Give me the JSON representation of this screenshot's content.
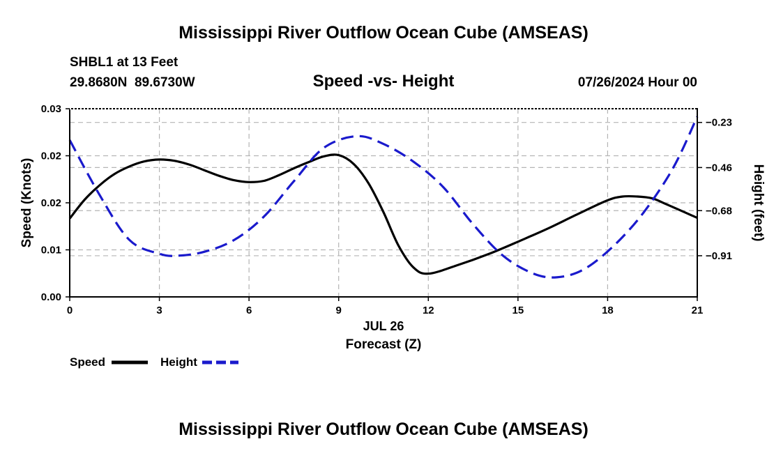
{
  "page": {
    "title": "Mississippi River Outflow Ocean Cube (AMSEAS)",
    "station": "SHBL1 at 13 Feet",
    "coords": "29.8680N  89.6730W",
    "plot_title": "Speed -vs- Height",
    "datetime": "07/26/2024 Hour 00",
    "footer_title": "Mississippi River Outflow Ocean Cube (AMSEAS)"
  },
  "colors": {
    "speed": "#000000",
    "height": "#1a1acc",
    "grid": "#b4b4b4"
  },
  "chart_data": {
    "type": "line",
    "title": "Speed -vs- Height",
    "xlabel": "Forecast (Z)",
    "xsublabel": "JUL 26",
    "ylabel": "Speed (Knots)",
    "y2label": "Height (feet)",
    "xlim": [
      0,
      21
    ],
    "ylim": [
      0,
      0.03
    ],
    "y2lim": [
      -1.12,
      -0.16
    ],
    "xticks": [
      0,
      3,
      6,
      9,
      12,
      15,
      18,
      21
    ],
    "xtick_labels": [
      "0",
      "3",
      "6",
      "9",
      "12",
      "15",
      "18",
      "21"
    ],
    "yticks": [
      0,
      0.0075,
      0.015,
      0.0225,
      0.03
    ],
    "ytick_labels": [
      "0.00",
      "0.01",
      "0.02",
      "0.02",
      "0.03"
    ],
    "y2ticks": [
      -0.91,
      -0.68,
      -0.46,
      -0.23
    ],
    "y2tick_labels": [
      "−0.91",
      "−0.68",
      "−0.46",
      "−0.23"
    ],
    "legend": [
      {
        "name": "Speed",
        "style": "solid"
      },
      {
        "name": "Height",
        "style": "dashed"
      }
    ],
    "series": [
      {
        "name": "Speed",
        "axis": "left",
        "style": "solid",
        "x": [
          0,
          0.5,
          1,
          1.5,
          2,
          2.5,
          3,
          3.5,
          4,
          4.5,
          5,
          5.5,
          6,
          6.5,
          7,
          7.5,
          8,
          8.5,
          9,
          9.5,
          10,
          10.5,
          11,
          11.5,
          12,
          13,
          14,
          15,
          16,
          17,
          18,
          18.5,
          19,
          19.5,
          20,
          21
        ],
        "y": [
          0.0125,
          0.0155,
          0.0178,
          0.0196,
          0.0208,
          0.0216,
          0.0219,
          0.0217,
          0.0211,
          0.0202,
          0.0193,
          0.0186,
          0.0183,
          0.0185,
          0.0194,
          0.0205,
          0.0215,
          0.0224,
          0.0226,
          0.0212,
          0.0181,
          0.0135,
          0.0082,
          0.0047,
          0.0037,
          0.0051,
          0.0068,
          0.0088,
          0.0109,
          0.0132,
          0.0154,
          0.016,
          0.016,
          0.0157,
          0.0147,
          0.0126
        ]
      },
      {
        "name": "Height",
        "axis": "right",
        "style": "dashed",
        "x": [
          0,
          1,
          2,
          3,
          3.6,
          4.5,
          5.5,
          6.5,
          7.5,
          8.5,
          9.6,
          10.5,
          11.5,
          12.5,
          13.5,
          14.5,
          15.5,
          16.3,
          17.2,
          18.2,
          19.2,
          20.2,
          21
        ],
        "y": [
          -0.32,
          -0.6,
          -0.83,
          -0.9,
          -0.91,
          -0.89,
          -0.83,
          -0.71,
          -0.53,
          -0.36,
          -0.3,
          -0.34,
          -0.43,
          -0.56,
          -0.75,
          -0.91,
          -1.0,
          -1.02,
          -0.98,
          -0.86,
          -0.69,
          -0.46,
          -0.2
        ]
      }
    ]
  }
}
